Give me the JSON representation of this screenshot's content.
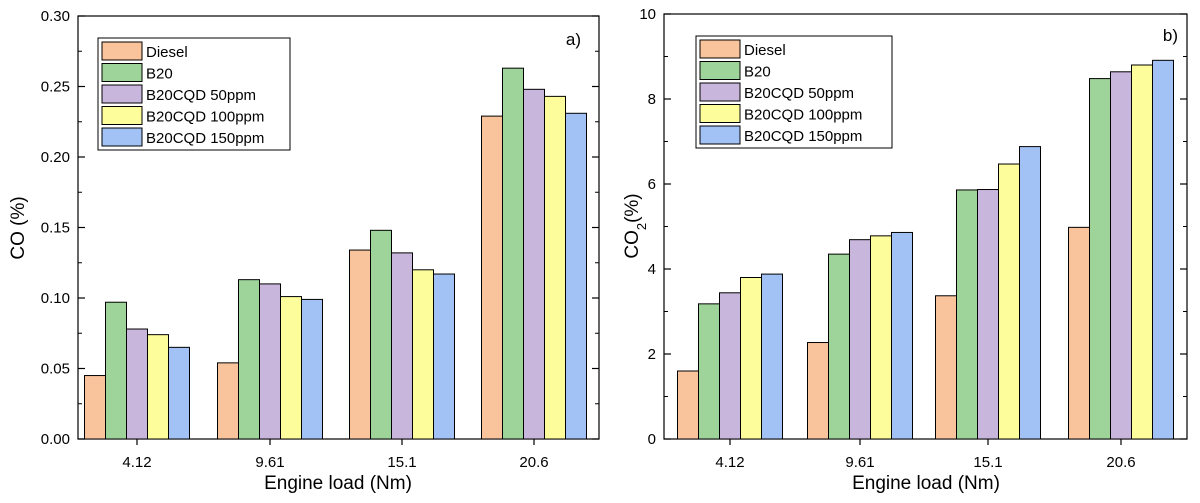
{
  "colors": {
    "Diesel": "#f9c49c",
    "B20": "#9ed49a",
    "B20CQD 50ppm": "#c8b6dc",
    "B20CQD 100ppm": "#fdfd9c",
    "B20CQD 150ppm": "#a2c2f5",
    "axis": "#000000"
  },
  "chart_data": [
    {
      "type": "bar",
      "panel_label": "a)",
      "title": "",
      "xlabel": "Engine load (Nm)",
      "ylabel": "CO (%)",
      "ylabel_main": "CO (%)",
      "ylabel_sub": "",
      "ylabel_tail": "",
      "ylim": [
        0,
        0.3
      ],
      "yticks": [
        "0.00",
        "0.05",
        "0.10",
        "0.15",
        "0.20",
        "0.25",
        "0.30"
      ],
      "categories": [
        "4.12",
        "9.61",
        "15.1",
        "20.6"
      ],
      "legend_position": "top-left",
      "grid": false,
      "series": [
        {
          "name": "Diesel",
          "values": [
            0.045,
            0.054,
            0.134,
            0.229
          ]
        },
        {
          "name": "B20",
          "values": [
            0.097,
            0.113,
            0.148,
            0.263
          ]
        },
        {
          "name": "B20CQD 50ppm",
          "values": [
            0.078,
            0.11,
            0.132,
            0.248
          ]
        },
        {
          "name": "B20CQD 100ppm",
          "values": [
            0.074,
            0.101,
            0.12,
            0.243
          ]
        },
        {
          "name": "B20CQD 150ppm",
          "values": [
            0.065,
            0.099,
            0.117,
            0.231
          ]
        }
      ]
    },
    {
      "type": "bar",
      "panel_label": "b)",
      "title": "",
      "xlabel": "Engine load (Nm)",
      "ylabel": "CO2(%)",
      "ylabel_main": "CO",
      "ylabel_sub": "2",
      "ylabel_tail": "(%)",
      "ylim": [
        0,
        10
      ],
      "yticks": [
        "0",
        "2",
        "4",
        "6",
        "8",
        "10"
      ],
      "categories": [
        "4.12",
        "9.61",
        "15.1",
        "20.6"
      ],
      "legend_position": "top-left",
      "grid": false,
      "series": [
        {
          "name": "Diesel",
          "values": [
            1.6,
            2.27,
            3.37,
            4.98
          ]
        },
        {
          "name": "B20",
          "values": [
            3.18,
            4.35,
            5.86,
            8.48
          ]
        },
        {
          "name": "B20CQD 50ppm",
          "values": [
            3.44,
            4.69,
            5.87,
            8.64
          ]
        },
        {
          "name": "B20CQD 100ppm",
          "values": [
            3.8,
            4.78,
            6.47,
            8.8
          ]
        },
        {
          "name": "B20CQD 150ppm",
          "values": [
            3.88,
            4.86,
            6.88,
            8.91
          ]
        }
      ]
    }
  ]
}
